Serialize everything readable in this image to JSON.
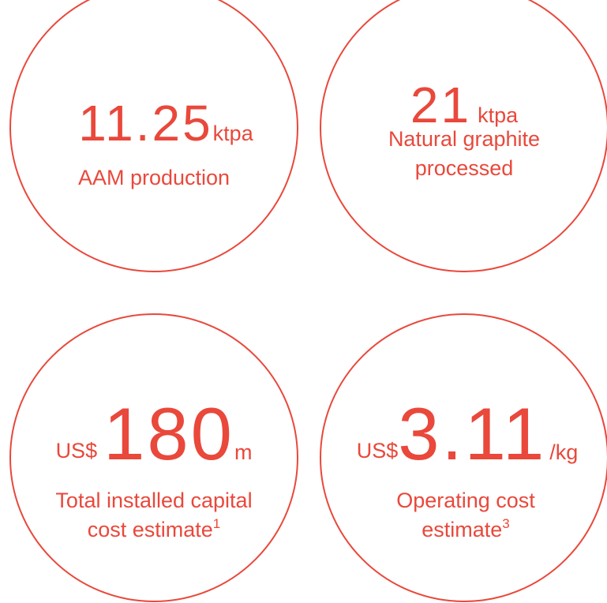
{
  "items": [
    {
      "value": 11.25,
      "unit": "ktpa",
      "label": [
        "AAM production"
      ]
    },
    {
      "value": 21,
      "unit": "ktpa",
      "label": [
        "Natural graphite",
        "processed"
      ]
    },
    {
      "prefix": "US$",
      "value": 180,
      "unit": "m",
      "label": [
        "Total installed capital",
        "cost estimate"
      ],
      "note": "1"
    },
    {
      "prefix": "US$",
      "value": 3.11,
      "unit": "/kg",
      "label": [
        "Operating cost",
        "estimate"
      ],
      "note": "3"
    }
  ]
}
